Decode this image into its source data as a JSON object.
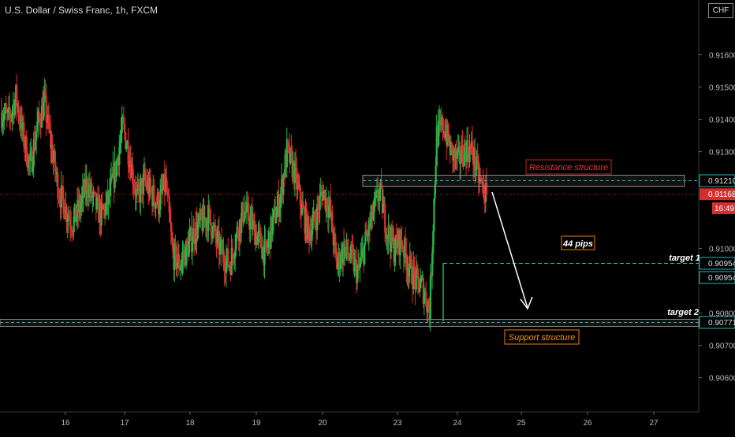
{
  "title": "U.S. Dollar / Swiss Franc, 1h, FXCM",
  "currency_label": "CHF",
  "chart_data": {
    "type": "candlestick",
    "ylim": [
      0.9053,
      0.9171
    ],
    "y_ticks": [
      "0.90600",
      "0.90700",
      "0.90800",
      "0.91000",
      "0.91300",
      "0.91400",
      "0.91500",
      "0.91600"
    ],
    "x_ticks": [
      "16",
      "17",
      "18",
      "19",
      "20",
      "23",
      "24",
      "25",
      "26",
      "27"
    ],
    "price_labels": {
      "current": "0.91168",
      "countdown": "16:49",
      "resistance": "0.91210",
      "target1": "0.90954",
      "target1_dup": "0.90954",
      "support": "0.90771"
    },
    "annotations": {
      "resistance": "Resistance structure",
      "support": "Support structure",
      "pips": "44 pips",
      "target1": "target 1",
      "target2": "target 2"
    },
    "levels": {
      "resistance": 0.9121,
      "target1": 0.90954,
      "support": 0.90771,
      "current": 0.91168
    },
    "anchors": [
      0.9142,
      0.914,
      0.9147,
      0.9135,
      0.9125,
      0.9138,
      0.9145,
      0.9131,
      0.9118,
      0.9112,
      0.9108,
      0.9113,
      0.912,
      0.9114,
      0.911,
      0.9115,
      0.9125,
      0.9138,
      0.9128,
      0.9115,
      0.9121,
      0.9117,
      0.9114,
      0.912,
      0.9098,
      0.9095,
      0.91,
      0.9105,
      0.9108,
      0.911,
      0.9103,
      0.9098,
      0.9095,
      0.9105,
      0.9112,
      0.9108,
      0.9103,
      0.9098,
      0.9108,
      0.9115,
      0.913,
      0.9124,
      0.9113,
      0.9105,
      0.9109,
      0.9118,
      0.9112,
      0.9095,
      0.91,
      0.9097,
      0.9092,
      0.9102,
      0.911,
      0.9118,
      0.9106,
      0.91,
      0.9103,
      0.9095,
      0.909,
      0.9088,
      0.9081,
      0.9135,
      0.9138,
      0.913,
      0.9127,
      0.9131,
      0.913,
      0.9121,
      0.9116
    ]
  }
}
